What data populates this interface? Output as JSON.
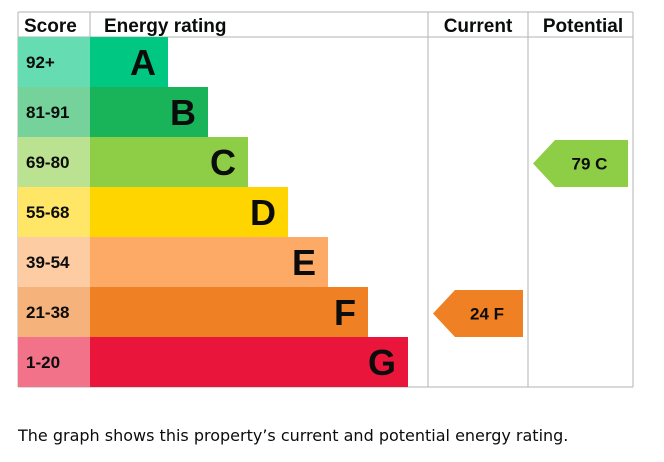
{
  "chart_data": {
    "type": "bar",
    "headers": {
      "score": "Score",
      "rating": "Energy rating",
      "current": "Current",
      "potential": "Potential"
    },
    "bands": [
      {
        "score": "92+",
        "letter": "A",
        "color": "#00c781",
        "score_bg": "#66dcb3"
      },
      {
        "score": "81-91",
        "letter": "B",
        "color": "#19b459",
        "score_bg": "#75d29b"
      },
      {
        "score": "69-80",
        "letter": "C",
        "color": "#8dce46",
        "score_bg": "#bbe290"
      },
      {
        "score": "55-68",
        "letter": "D",
        "color": "#ffd500",
        "score_bg": "#ffe666"
      },
      {
        "score": "39-54",
        "letter": "E",
        "color": "#fcaa65",
        "score_bg": "#fdcca3"
      },
      {
        "score": "21-38",
        "letter": "F",
        "color": "#ef8023",
        "score_bg": "#f5b37b"
      },
      {
        "score": "1-20",
        "letter": "G",
        "color": "#e9153b",
        "score_bg": "#f27389"
      }
    ],
    "current": {
      "value": 24,
      "letter": "F",
      "label": "24 F",
      "color": "#ef8023"
    },
    "potential": {
      "value": 79,
      "letter": "C",
      "label": "79 C",
      "color": "#8dce46"
    }
  },
  "caption": "The graph shows this property’s current and potential energy rating."
}
